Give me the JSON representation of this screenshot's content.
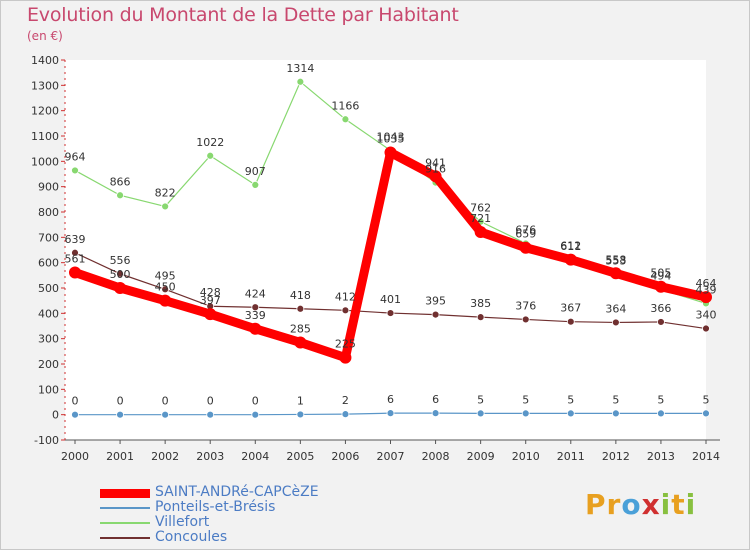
{
  "header": {
    "title": "Evolution du Montant de la Dette par Habitant",
    "unit": "(en €)"
  },
  "logo": {
    "text": "Proxiti",
    "letters": [
      "P",
      "r",
      "o",
      "x",
      "i",
      "t",
      "i"
    ],
    "colors": [
      "#e8a020",
      "#e8a020",
      "#4aa0d8",
      "#d03030",
      "#88c040",
      "#e8a020",
      "#88c040"
    ]
  },
  "chart_data": {
    "type": "line",
    "x": [
      "2000",
      "2001",
      "2002",
      "2003",
      "2004",
      "2005",
      "2006",
      "2007",
      "2008",
      "2009",
      "2010",
      "2011",
      "2012",
      "2013",
      "2014"
    ],
    "ylim": [
      -100,
      1400
    ],
    "yticks": [
      "1400",
      "1300",
      "1200",
      "1100",
      "1000",
      "900",
      "800",
      "700",
      "600",
      "500",
      "400",
      "300",
      "200",
      "100",
      "0",
      "-100"
    ],
    "grid": false,
    "legend_placement": "bottom-left",
    "series": [
      {
        "name": "SAINT-ANDRé-CAPCèZE",
        "color": "#ff0000",
        "values": [
          561,
          500,
          450,
          397,
          339,
          285,
          225,
          1035,
          941,
          721,
          659,
          612,
          558,
          505,
          464
        ],
        "labels": [
          "561",
          "500",
          "450",
          "397",
          "339",
          "285",
          "225",
          "1035",
          "941",
          "721",
          "659",
          "612",
          "558",
          "505",
          "464"
        ]
      },
      {
        "name": "Ponteils-et-Brésis",
        "color": "#5a96c8",
        "values": [
          0,
          0,
          0,
          0,
          0,
          1,
          2,
          6,
          6,
          5,
          5,
          5,
          5,
          5,
          5
        ],
        "labels": [
          "0",
          "0",
          "0",
          "0",
          "0",
          "1",
          "2",
          "6",
          "6",
          "5",
          "5",
          "5",
          "5",
          "5",
          "5"
        ]
      },
      {
        "name": "Villefort",
        "color": "#88d870",
        "values": [
          964,
          866,
          822,
          1022,
          907,
          1314,
          1166,
          1043,
          916,
          762,
          676,
          611,
          553,
          494,
          439
        ],
        "labels": [
          "964",
          "866",
          "822",
          "1022",
          "907",
          "1314",
          "1166",
          "1043",
          "916",
          "762",
          "676",
          "611",
          "553",
          "494",
          "439"
        ]
      },
      {
        "name": "Concoules",
        "color": "#703030",
        "values": [
          639,
          556,
          495,
          428,
          424,
          418,
          412,
          401,
          395,
          385,
          376,
          367,
          364,
          366,
          340
        ],
        "labels": [
          "639",
          "556",
          "495",
          "428",
          "424",
          "418",
          "412",
          "401",
          "395",
          "385",
          "376",
          "367",
          "364",
          "366",
          "340"
        ]
      }
    ]
  }
}
